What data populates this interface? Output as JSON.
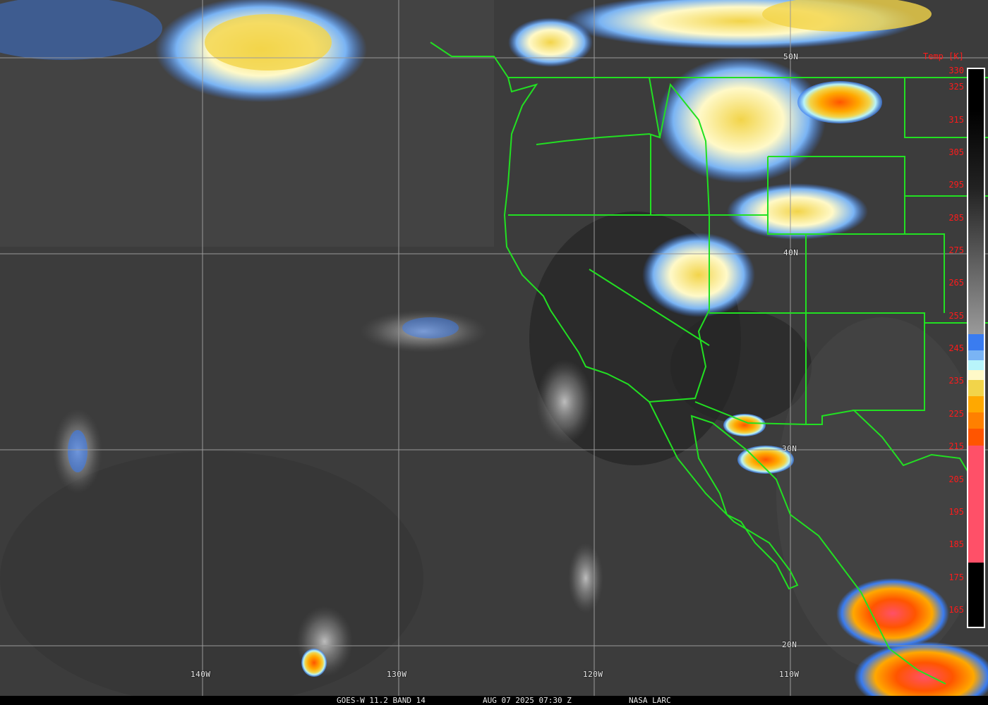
{
  "footer": {
    "satellite": "GOES-W 11.2 BAND 14",
    "datetime": "AUG 07 2025 07:30 Z",
    "credit": "NASA LARC"
  },
  "grid": {
    "latitudes": [
      "50N",
      "40N",
      "30N",
      "20N"
    ],
    "longitudes": [
      "140W",
      "130W",
      "120W",
      "110W"
    ]
  },
  "colorbar": {
    "title": "Temp [K]",
    "ticks": [
      "330",
      "325",
      "315",
      "305",
      "295",
      "285",
      "275",
      "265",
      "255",
      "245",
      "235",
      "225",
      "215",
      "205",
      "195",
      "185",
      "175",
      "165"
    ],
    "segments": [
      {
        "to": 245,
        "color": "#3a7cf0"
      },
      {
        "to": 242,
        "color": "#7ab4f4"
      },
      {
        "to": 239,
        "color": "#b8f4fa"
      },
      {
        "to": 236,
        "color": "#fff9c8"
      },
      {
        "to": 231,
        "color": "#f2d44a"
      },
      {
        "to": 226,
        "color": "#ffa800"
      },
      {
        "to": 221,
        "color": "#ff8000"
      },
      {
        "to": 216,
        "color": "#ff5500"
      },
      {
        "to": 180,
        "color": "#ff5068"
      }
    ]
  },
  "colors": {
    "borders": "#22e022",
    "gridlines": "#9a9a9a",
    "labels": "#ff1a1a"
  }
}
